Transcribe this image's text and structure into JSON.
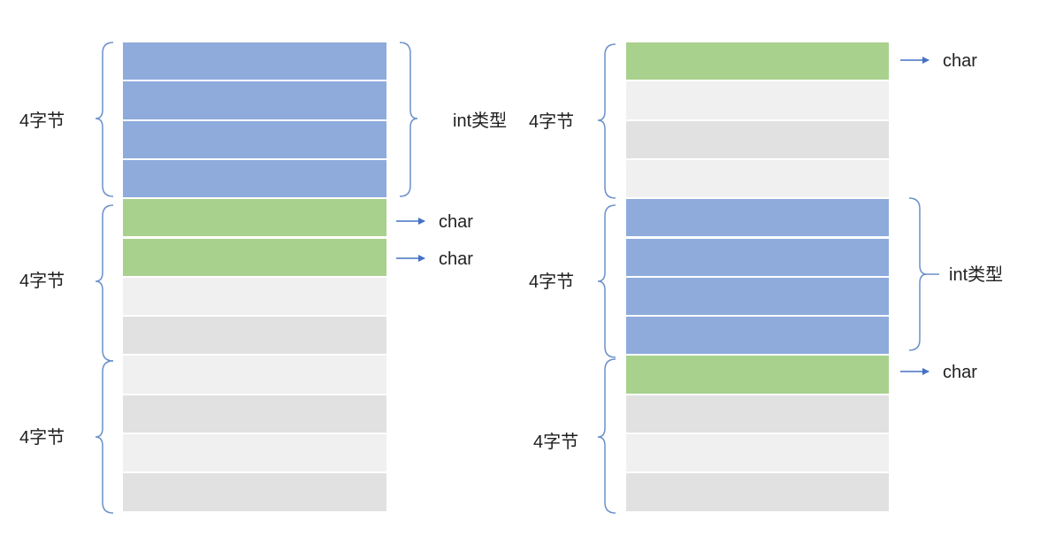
{
  "colors": {
    "int_fill": "#8eabdc",
    "char_fill": "#a9d18e",
    "pad_light": "#f0f0f0",
    "pad_dark": "#e1e1e1",
    "bracket": "#6a90c8",
    "arrow": "#4472c4"
  },
  "left": {
    "cells": [
      "int",
      "int",
      "int",
      "int",
      "char",
      "char",
      "pad",
      "pad",
      "pad",
      "pad",
      "pad",
      "pad"
    ],
    "group_labels": [
      "4字节",
      "4字节",
      "4字节"
    ],
    "int_label": "int类型",
    "char_labels": [
      "char",
      "char"
    ]
  },
  "right": {
    "cells": [
      "char",
      "pad",
      "pad",
      "pad",
      "int",
      "int",
      "int",
      "int",
      "char",
      "pad",
      "pad",
      "pad"
    ],
    "group_labels": [
      "4字节",
      "4字节",
      "4字节"
    ],
    "int_label": "int类型",
    "char_labels": [
      "char",
      "char"
    ]
  }
}
